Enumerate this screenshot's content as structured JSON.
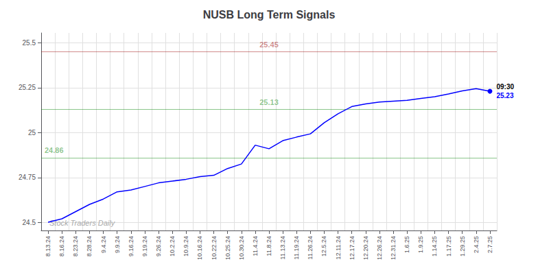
{
  "chart_data": {
    "type": "line",
    "title": "NUSB Long Term Signals",
    "categories": [
      "8.13.24",
      "8.16.24",
      "8.23.24",
      "8.28.24",
      "9.4.24",
      "9.9.24",
      "9.16.24",
      "9.19.24",
      "9.26.24",
      "10.2.24",
      "10.9.24",
      "10.16.24",
      "10.22.24",
      "10.25.24",
      "10.30.24",
      "11.4.24",
      "11.8.24",
      "11.13.24",
      "11.19.24",
      "11.26.24",
      "12.5.24",
      "12.11.24",
      "12.17.24",
      "12.20.24",
      "12.26.24",
      "12.31.24",
      "1.6.25",
      "1.9.25",
      "1.14.25",
      "1.17.25",
      "1.29.25",
      "2.4.25",
      "2.7.25"
    ],
    "values": [
      24.501,
      24.52,
      24.56,
      24.6,
      24.63,
      24.67,
      24.68,
      24.7,
      24.72,
      24.73,
      24.74,
      24.755,
      24.762,
      24.8,
      24.825,
      24.93,
      24.91,
      24.955,
      24.975,
      24.993,
      25.055,
      25.105,
      25.145,
      25.16,
      25.17,
      25.175,
      25.18,
      25.19,
      25.2,
      25.215,
      25.232,
      25.245,
      25.23
    ],
    "color": "blue",
    "ylim": [
      24.455,
      25.555
    ],
    "yticks": [
      24.5,
      24.75,
      25,
      25.25,
      25.5
    ],
    "grid": true,
    "reference_lines": [
      {
        "value": 25.45,
        "label": "25.45",
        "color": "#990000"
      },
      {
        "value": 25.13,
        "label": "25.13",
        "color": "green"
      },
      {
        "value": 24.86,
        "label": "24.86",
        "color": "green"
      }
    ],
    "last_point_label": {
      "time": "09:30",
      "price": 25.23
    },
    "watermark": "Stock Traders Daily"
  }
}
